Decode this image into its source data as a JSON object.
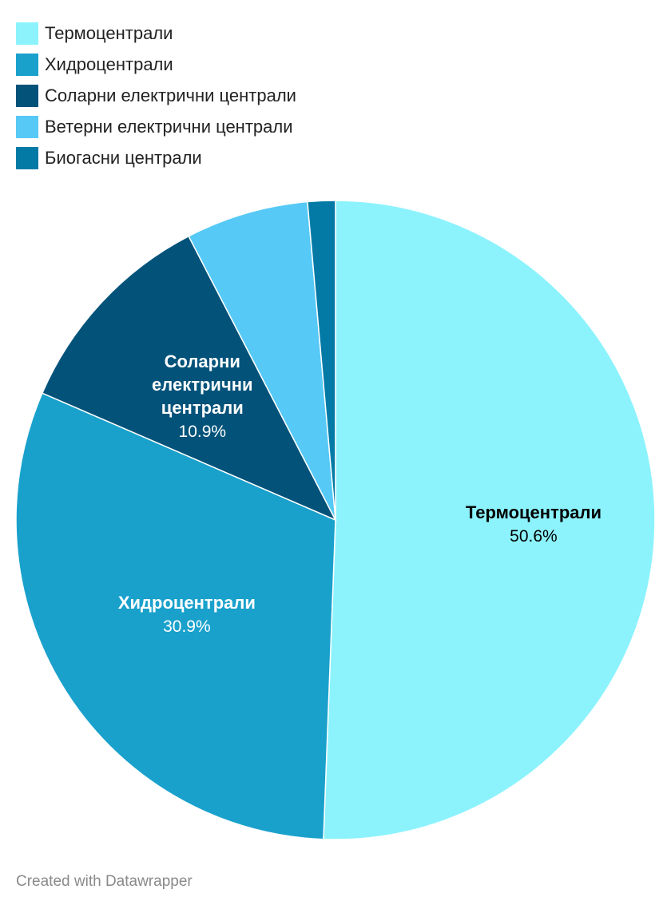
{
  "chart_data": {
    "type": "pie",
    "title": "",
    "categories": [
      "Термоцентрали",
      "Хидроцентрали",
      "Соларни електрични централи",
      "Ветерни електрични централи",
      "Биогасни централи"
    ],
    "values": [
      50.6,
      30.9,
      10.9,
      6.2,
      1.4
    ],
    "colors": [
      "#8cf3fd",
      "#19a1cc",
      "#02527a",
      "#56c9f6",
      "#037aa6"
    ],
    "slice_labels": [
      {
        "lines": [
          "Термоцентрали"
        ],
        "value": "50.6%",
        "text_color": "#000000"
      },
      {
        "lines": [
          "Хидроцентрали"
        ],
        "value": "30.9%",
        "text_color": "#ffffff"
      },
      {
        "lines": [
          "Соларни",
          "електрични",
          "централи"
        ],
        "value": "10.9%",
        "text_color": "#ffffff"
      },
      null,
      null
    ],
    "legend_placement": "top-left"
  },
  "footer": {
    "credit": "Created with Datawrapper"
  }
}
